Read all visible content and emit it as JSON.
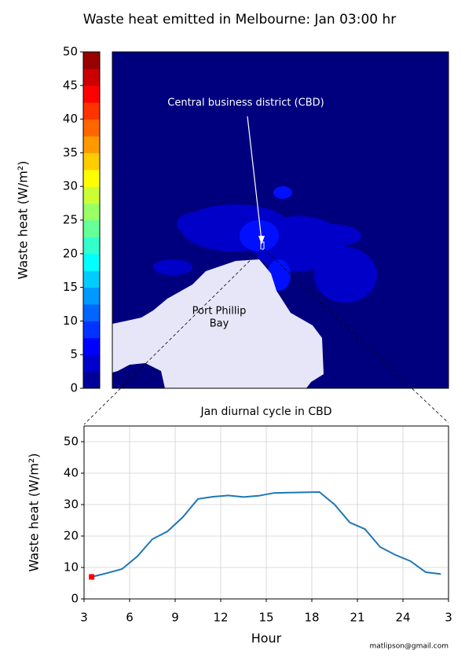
{
  "chart_data": [
    {
      "type": "heatmap",
      "title": "Waste heat emitted in Melbourne: Jan 03:00 hr",
      "ylabel": "Waste heat (W/m²)",
      "ylim": [
        0,
        50
      ],
      "yticks": [
        0,
        5,
        10,
        15,
        20,
        25,
        30,
        35,
        40,
        45,
        50
      ],
      "colors": [
        "#000099",
        "#0000cc",
        "#0000ff",
        "#0033ff",
        "#0066ff",
        "#0099ff",
        "#00ccff",
        "#00ffff",
        "#33ffcc",
        "#66ff99",
        "#99ff66",
        "#ccff33",
        "#ffff00",
        "#ffcc00",
        "#ff9900",
        "#ff6600",
        "#ff3300",
        "#ff0000",
        "#cc0000",
        "#990000"
      ],
      "annotation": "Central business district (CBD)",
      "bay_label": [
        "Port Phillip",
        "Bay"
      ]
    },
    {
      "type": "line",
      "title": "Jan diurnal cycle in CBD",
      "xlabel": "Hour",
      "ylabel": "Waste heat (W/m²)",
      "x": [
        3.5,
        4.5,
        5.5,
        6.5,
        7.5,
        8.5,
        9.5,
        10.5,
        11.5,
        12.5,
        13.5,
        14.5,
        15.5,
        16.5,
        17.5,
        18.5,
        19.5,
        20.5,
        21.5,
        22.5,
        23.5,
        24.5,
        25.5,
        26.5
      ],
      "values": [
        7,
        8.2,
        9.5,
        13.5,
        19,
        21.5,
        26,
        31.8,
        32.5,
        32.9,
        32.4,
        32.8,
        33.7,
        33.8,
        33.9,
        34,
        30,
        24.3,
        22.2,
        16.5,
        14,
        12,
        8.5,
        7.9
      ],
      "color": "#1f77b4",
      "marker": {
        "x": 3.5,
        "y": 7,
        "color": "#ff0000"
      },
      "xlim": [
        3,
        27
      ],
      "ylim": [
        0,
        55
      ],
      "xticks": [
        3,
        6,
        9,
        12,
        15,
        18,
        21,
        24,
        {
          "value": 27,
          "label": "3"
        }
      ],
      "yticks": [
        0,
        10,
        20,
        30,
        40,
        50
      ],
      "grid": true,
      "credit": "matlipson@gmail.com"
    }
  ]
}
